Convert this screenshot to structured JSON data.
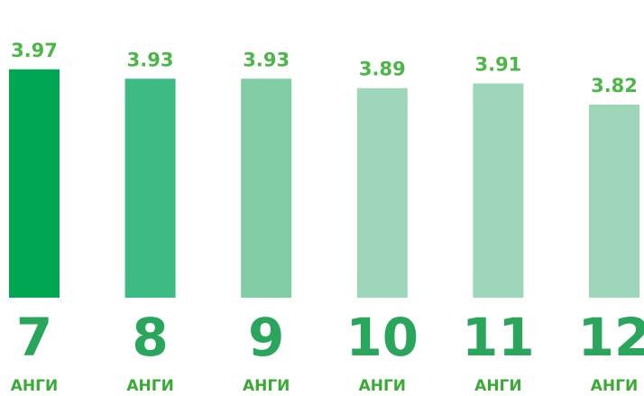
{
  "chart_data": {
    "type": "bar",
    "categories": [
      "7",
      "8",
      "9",
      "10",
      "11",
      "12"
    ],
    "category_suffix": "АНГИ",
    "values": [
      3.97,
      3.93,
      3.93,
      3.89,
      3.91,
      3.82
    ],
    "colors": [
      "#00a651",
      "#3dbb84",
      "#7fcca5",
      "#9dd6b9",
      "#9dd6b9",
      "#9dd6b9"
    ],
    "ylim": [
      3,
      4
    ],
    "grid": false
  }
}
